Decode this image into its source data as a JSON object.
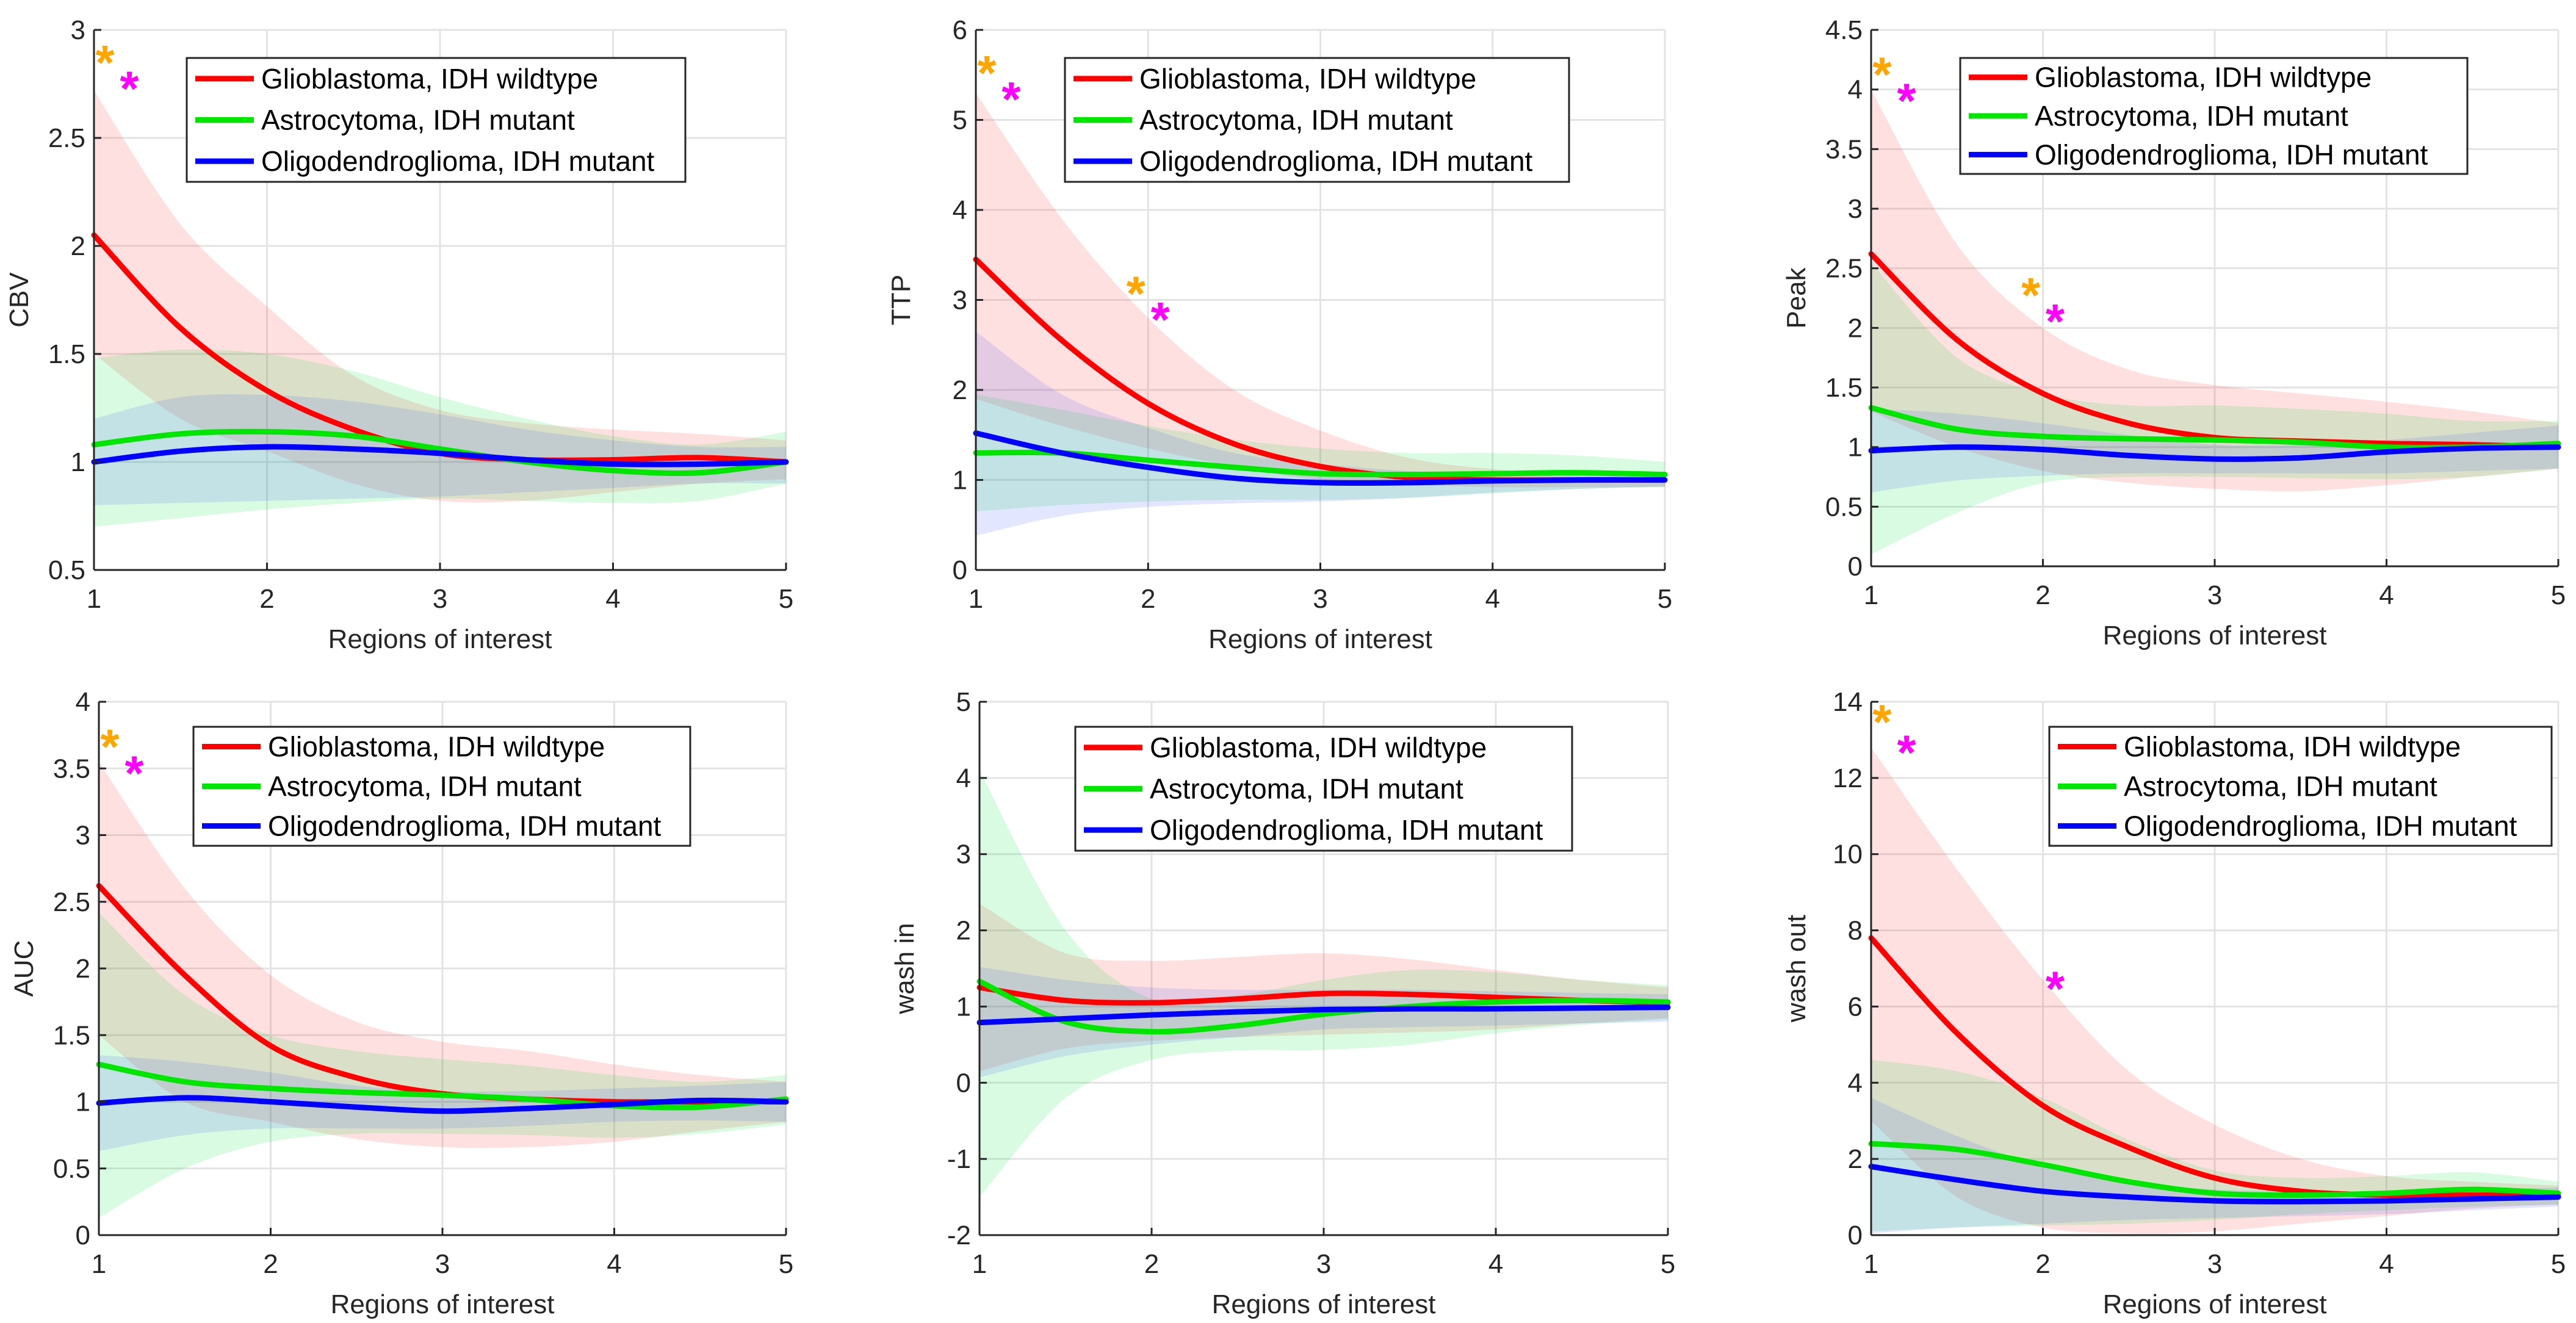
{
  "legend_labels": [
    "Glioblastoma, IDH wildtype",
    "Astrocytoma, IDH mutant",
    "Oligodendroglioma, IDH mutant"
  ],
  "colors": {
    "series": [
      "#ff0000",
      "#00e600",
      "#0000ff"
    ],
    "bands": [
      "rgba(255,60,60,0.16)",
      "rgba(0,230,60,0.15)",
      "rgba(40,60,255,0.13)"
    ],
    "star_orange": "#ffa500",
    "star_magenta": "#ff00ff"
  },
  "chart_data": [
    {
      "type": "line",
      "title": "",
      "xlabel": "Regions of interest",
      "ylabel": "CBV",
      "xlim": [
        1,
        5
      ],
      "ylim": [
        0.5,
        3
      ],
      "xticks": [
        "1",
        "2",
        "3",
        "4",
        "5"
      ],
      "yticks": [
        "0.5",
        "1",
        "1.5",
        "2",
        "2.5",
        "3"
      ],
      "ytick_values": [
        0.5,
        1,
        1.5,
        2,
        2.5,
        3
      ],
      "grid": true,
      "legend_position": "top-center",
      "x": [
        1,
        1.5,
        2,
        2.5,
        3,
        3.5,
        4,
        4.5,
        5
      ],
      "series": [
        {
          "name": "Glioblastoma, IDH wildtype",
          "values": [
            2.05,
            1.62,
            1.33,
            1.15,
            1.04,
            1.01,
            1.01,
            1.02,
            1.0
          ],
          "lower": [
            1.5,
            1.2,
            1.05,
            0.9,
            0.82,
            0.82,
            0.86,
            0.9,
            0.92
          ],
          "upper": [
            2.72,
            2.1,
            1.72,
            1.4,
            1.24,
            1.18,
            1.15,
            1.13,
            1.1
          ]
        },
        {
          "name": "Astrocytoma, IDH mutant",
          "values": [
            1.08,
            1.13,
            1.14,
            1.12,
            1.06,
            1.0,
            0.96,
            0.95,
            1.0
          ],
          "lower": [
            0.7,
            0.74,
            0.78,
            0.81,
            0.83,
            0.82,
            0.81,
            0.82,
            0.9
          ],
          "upper": [
            1.48,
            1.52,
            1.5,
            1.42,
            1.3,
            1.2,
            1.12,
            1.08,
            1.14
          ]
        },
        {
          "name": "Oligodendroglioma, IDH mutant",
          "values": [
            1.0,
            1.05,
            1.07,
            1.06,
            1.04,
            1.01,
            0.99,
            0.99,
            1.0
          ],
          "lower": [
            0.8,
            0.81,
            0.82,
            0.83,
            0.84,
            0.86,
            0.88,
            0.9,
            0.9
          ],
          "upper": [
            1.2,
            1.3,
            1.31,
            1.28,
            1.22,
            1.15,
            1.1,
            1.07,
            1.07
          ]
        }
      ],
      "markers": [
        {
          "x": 1,
          "y": 2.89,
          "color": "orange",
          "symbol": "*"
        },
        {
          "x": 1,
          "y": 2.77,
          "color": "magenta",
          "symbol": "*"
        }
      ]
    },
    {
      "type": "line",
      "title": "",
      "xlabel": "Regions of interest",
      "ylabel": "TTP",
      "xlim": [
        1,
        5
      ],
      "ylim": [
        0,
        6
      ],
      "xticks": [
        "1",
        "2",
        "3",
        "4",
        "5"
      ],
      "yticks": [
        "0",
        "1",
        "2",
        "3",
        "4",
        "5",
        "6"
      ],
      "ytick_values": [
        0,
        1,
        2,
        3,
        4,
        5,
        6
      ],
      "grid": true,
      "legend_position": "top-center",
      "x": [
        1,
        1.5,
        2,
        2.5,
        3,
        3.5,
        4,
        4.5,
        5
      ],
      "series": [
        {
          "name": "Glioblastoma, IDH wildtype",
          "values": [
            3.45,
            2.55,
            1.85,
            1.4,
            1.15,
            1.03,
            1.0,
            1.0,
            1.0
          ],
          "lower": [
            1.9,
            1.6,
            1.35,
            1.15,
            1.0,
            0.95,
            0.92,
            0.92,
            0.92
          ],
          "upper": [
            5.3,
            3.9,
            2.8,
            2.0,
            1.55,
            1.25,
            1.12,
            1.08,
            1.05
          ]
        },
        {
          "name": "Astrocytoma, IDH mutant",
          "values": [
            1.3,
            1.3,
            1.22,
            1.14,
            1.07,
            1.06,
            1.07,
            1.08,
            1.06
          ],
          "lower": [
            0.65,
            0.72,
            0.76,
            0.78,
            0.78,
            0.8,
            0.85,
            0.9,
            0.92
          ],
          "upper": [
            1.95,
            1.78,
            1.6,
            1.45,
            1.35,
            1.3,
            1.3,
            1.27,
            1.2
          ]
        },
        {
          "name": "Oligodendroglioma, IDH mutant",
          "values": [
            1.52,
            1.3,
            1.14,
            1.02,
            0.97,
            0.97,
            0.99,
            1.0,
            1.0
          ],
          "lower": [
            0.38,
            0.6,
            0.7,
            0.74,
            0.76,
            0.8,
            0.86,
            0.9,
            0.93
          ],
          "upper": [
            2.65,
            1.95,
            1.58,
            1.3,
            1.18,
            1.1,
            1.08,
            1.07,
            1.06
          ]
        }
      ],
      "markers": [
        {
          "x": 1,
          "y": 5.62,
          "color": "orange",
          "symbol": "*"
        },
        {
          "x": 1,
          "y": 5.33,
          "color": "magenta",
          "symbol": "*"
        },
        {
          "x": 2,
          "y": 3.17,
          "color": "orange",
          "symbol": "*"
        },
        {
          "x": 2,
          "y": 2.88,
          "color": "magenta",
          "symbol": "*"
        }
      ]
    },
    {
      "type": "line",
      "title": "",
      "xlabel": "Regions of interest",
      "ylabel": "Peak",
      "xlim": [
        1,
        5
      ],
      "ylim": [
        0,
        4.5
      ],
      "xticks": [
        "1",
        "2",
        "3",
        "4",
        "5"
      ],
      "yticks": [
        "0",
        "0.5",
        "1",
        "1.5",
        "2",
        "2.5",
        "3",
        "3.5",
        "4",
        "4.5"
      ],
      "ytick_values": [
        0,
        0.5,
        1,
        1.5,
        2,
        2.5,
        3,
        3.5,
        4,
        4.5
      ],
      "grid": true,
      "legend_position": "top-right",
      "x": [
        1,
        1.5,
        2,
        2.5,
        3,
        3.5,
        4,
        4.5,
        5
      ],
      "series": [
        {
          "name": "Glioblastoma, IDH wildtype",
          "values": [
            2.62,
            1.9,
            1.45,
            1.2,
            1.08,
            1.05,
            1.03,
            1.02,
            1.0
          ],
          "lower": [
            1.3,
            1.0,
            0.8,
            0.7,
            0.65,
            0.63,
            0.68,
            0.75,
            0.82
          ],
          "upper": [
            4.0,
            2.7,
            2.0,
            1.65,
            1.52,
            1.45,
            1.38,
            1.3,
            1.2
          ]
        },
        {
          "name": "Astrocytoma, IDH mutant",
          "values": [
            1.33,
            1.15,
            1.09,
            1.07,
            1.06,
            1.04,
            1.0,
            1.0,
            1.03
          ],
          "lower": [
            0.1,
            0.45,
            0.7,
            0.75,
            0.75,
            0.74,
            0.73,
            0.75,
            0.82
          ],
          "upper": [
            2.55,
            1.75,
            1.45,
            1.35,
            1.35,
            1.32,
            1.28,
            1.22,
            1.22
          ]
        },
        {
          "name": "Oligodendroglioma, IDH mutant",
          "values": [
            0.97,
            1.0,
            0.98,
            0.93,
            0.9,
            0.91,
            0.96,
            0.99,
            1.0
          ],
          "lower": [
            0.62,
            0.72,
            0.76,
            0.78,
            0.78,
            0.78,
            0.78,
            0.8,
            0.82
          ],
          "upper": [
            1.32,
            1.28,
            1.2,
            1.1,
            1.02,
            1.02,
            1.06,
            1.12,
            1.18
          ]
        }
      ],
      "markers": [
        {
          "x": 1,
          "y": 4.2,
          "color": "orange",
          "symbol": "*"
        },
        {
          "x": 1,
          "y": 3.98,
          "color": "magenta",
          "symbol": "*"
        },
        {
          "x": 2,
          "y": 2.35,
          "color": "orange",
          "symbol": "*"
        },
        {
          "x": 2,
          "y": 2.13,
          "color": "magenta",
          "symbol": "*"
        }
      ]
    },
    {
      "type": "line",
      "title": "",
      "xlabel": "Regions of interest",
      "ylabel": "AUC",
      "xlim": [
        1,
        5
      ],
      "ylim": [
        0,
        4
      ],
      "xticks": [
        "1",
        "2",
        "3",
        "4",
        "5"
      ],
      "yticks": [
        "0",
        "0.5",
        "1",
        "1.5",
        "2",
        "2.5",
        "3",
        "3.5",
        "4"
      ],
      "ytick_values": [
        0,
        0.5,
        1,
        1.5,
        2,
        2.5,
        3,
        3.5,
        4
      ],
      "grid": true,
      "legend_position": "top-center",
      "x": [
        1,
        1.5,
        2,
        2.5,
        3,
        3.5,
        4,
        4.5,
        5
      ],
      "series": [
        {
          "name": "Glioblastoma, IDH wildtype",
          "values": [
            2.62,
            1.95,
            1.42,
            1.18,
            1.06,
            1.02,
            1.0,
            1.0,
            1.0
          ],
          "lower": [
            1.5,
            1.0,
            0.85,
            0.72,
            0.66,
            0.66,
            0.7,
            0.78,
            0.85
          ],
          "upper": [
            3.55,
            2.6,
            1.95,
            1.6,
            1.45,
            1.38,
            1.28,
            1.2,
            1.15
          ]
        },
        {
          "name": "Astrocytoma, IDH mutant",
          "values": [
            1.28,
            1.15,
            1.1,
            1.07,
            1.05,
            1.02,
            0.97,
            0.96,
            1.02
          ],
          "lower": [
            0.13,
            0.5,
            0.7,
            0.76,
            0.76,
            0.75,
            0.73,
            0.76,
            0.83
          ],
          "upper": [
            2.42,
            1.8,
            1.5,
            1.38,
            1.32,
            1.27,
            1.2,
            1.15,
            1.2
          ]
        },
        {
          "name": "Oligodendroglioma, IDH mutant",
          "values": [
            0.99,
            1.03,
            1.0,
            0.96,
            0.93,
            0.95,
            0.98,
            1.01,
            1.0
          ],
          "lower": [
            0.63,
            0.75,
            0.8,
            0.8,
            0.8,
            0.82,
            0.85,
            0.86,
            0.85
          ],
          "upper": [
            1.35,
            1.3,
            1.22,
            1.12,
            1.08,
            1.08,
            1.1,
            1.12,
            1.15
          ]
        }
      ],
      "markers": [
        {
          "x": 1,
          "y": 3.73,
          "color": "orange",
          "symbol": "*"
        },
        {
          "x": 1,
          "y": 3.53,
          "color": "magenta",
          "symbol": "*"
        }
      ]
    },
    {
      "type": "line",
      "title": "",
      "xlabel": "Regions of interest",
      "ylabel": "wash in",
      "xlim": [
        1,
        5
      ],
      "ylim": [
        -2,
        5
      ],
      "xticks": [
        "1",
        "2",
        "3",
        "4",
        "5"
      ],
      "yticks": [
        "-2",
        "-1",
        "0",
        "1",
        "2",
        "3",
        "4",
        "5"
      ],
      "ytick_values": [
        -2,
        -1,
        0,
        1,
        2,
        3,
        4,
        5
      ],
      "grid": true,
      "legend_position": "top-center",
      "x": [
        1,
        1.5,
        2,
        2.5,
        3,
        3.5,
        4,
        4.5,
        5
      ],
      "series": [
        {
          "name": "Glioblastoma, IDH wildtype",
          "values": [
            1.25,
            1.08,
            1.05,
            1.1,
            1.17,
            1.16,
            1.12,
            1.08,
            1.05
          ],
          "lower": [
            0.15,
            0.45,
            0.55,
            0.6,
            0.63,
            0.66,
            0.7,
            0.78,
            0.85
          ],
          "upper": [
            2.35,
            1.7,
            1.6,
            1.65,
            1.7,
            1.62,
            1.48,
            1.35,
            1.25
          ]
        },
        {
          "name": "Astrocytoma, IDH mutant",
          "values": [
            1.33,
            0.8,
            0.67,
            0.75,
            0.9,
            1.0,
            1.06,
            1.08,
            1.06
          ],
          "lower": [
            -1.5,
            -0.2,
            0.3,
            0.42,
            0.43,
            0.5,
            0.65,
            0.76,
            0.83
          ],
          "upper": [
            4.1,
            2.0,
            1.1,
            1.15,
            1.35,
            1.48,
            1.45,
            1.35,
            1.28
          ]
        },
        {
          "name": "Oligodendroglioma, IDH mutant",
          "values": [
            0.79,
            0.84,
            0.89,
            0.93,
            0.96,
            0.97,
            0.97,
            0.98,
            0.99
          ],
          "lower": [
            0.07,
            0.35,
            0.5,
            0.6,
            0.7,
            0.73,
            0.75,
            0.78,
            0.8
          ],
          "upper": [
            1.52,
            1.35,
            1.25,
            1.22,
            1.22,
            1.22,
            1.2,
            1.18,
            1.16
          ]
        }
      ],
      "markers": []
    },
    {
      "type": "line",
      "title": "",
      "xlabel": "Regions of interest",
      "ylabel": "wash out",
      "xlim": [
        1,
        5
      ],
      "ylim": [
        0,
        14
      ],
      "xticks": [
        "1",
        "2",
        "3",
        "4",
        "5"
      ],
      "yticks": [
        "0",
        "2",
        "4",
        "6",
        "8",
        "10",
        "12",
        "14"
      ],
      "ytick_values": [
        0,
        2,
        4,
        6,
        8,
        10,
        12,
        14
      ],
      "grid": true,
      "legend_position": "top-right",
      "x": [
        1,
        1.5,
        2,
        2.5,
        3,
        3.5,
        4,
        4.5,
        5
      ],
      "series": [
        {
          "name": "Glioblastoma, IDH wildtype",
          "values": [
            7.8,
            5.3,
            3.4,
            2.3,
            1.5,
            1.15,
            1.05,
            1.05,
            1.05
          ],
          "lower": [
            3.0,
            1.0,
            0.2,
            0.05,
            0.1,
            0.3,
            0.5,
            0.7,
            0.8
          ],
          "upper": [
            12.8,
            9.6,
            6.7,
            4.3,
            2.9,
            2.0,
            1.55,
            1.4,
            1.3
          ]
        },
        {
          "name": "Astrocytoma, IDH mutant",
          "values": [
            2.4,
            2.25,
            1.85,
            1.4,
            1.1,
            1.05,
            1.1,
            1.2,
            1.1
          ],
          "lower": [
            0.1,
            0.2,
            0.25,
            0.3,
            0.4,
            0.55,
            0.65,
            0.75,
            0.8
          ],
          "upper": [
            4.6,
            4.3,
            3.6,
            2.5,
            1.7,
            1.5,
            1.55,
            1.65,
            1.4
          ]
        },
        {
          "name": "Oligodendroglioma, IDH mutant",
          "values": [
            1.8,
            1.45,
            1.15,
            1.0,
            0.9,
            0.88,
            0.9,
            0.95,
            1.0
          ],
          "lower": [
            0.05,
            0.2,
            0.3,
            0.4,
            0.45,
            0.5,
            0.55,
            0.65,
            0.75
          ],
          "upper": [
            3.6,
            2.6,
            1.8,
            1.4,
            1.2,
            1.15,
            1.15,
            1.2,
            1.25
          ]
        }
      ],
      "markers": [
        {
          "x": 1,
          "y": 13.7,
          "color": "orange",
          "symbol": "*"
        },
        {
          "x": 1,
          "y": 12.9,
          "color": "magenta",
          "symbol": "*"
        },
        {
          "x": 2,
          "y": 6.7,
          "color": "magenta",
          "symbol": "*"
        }
      ]
    }
  ]
}
